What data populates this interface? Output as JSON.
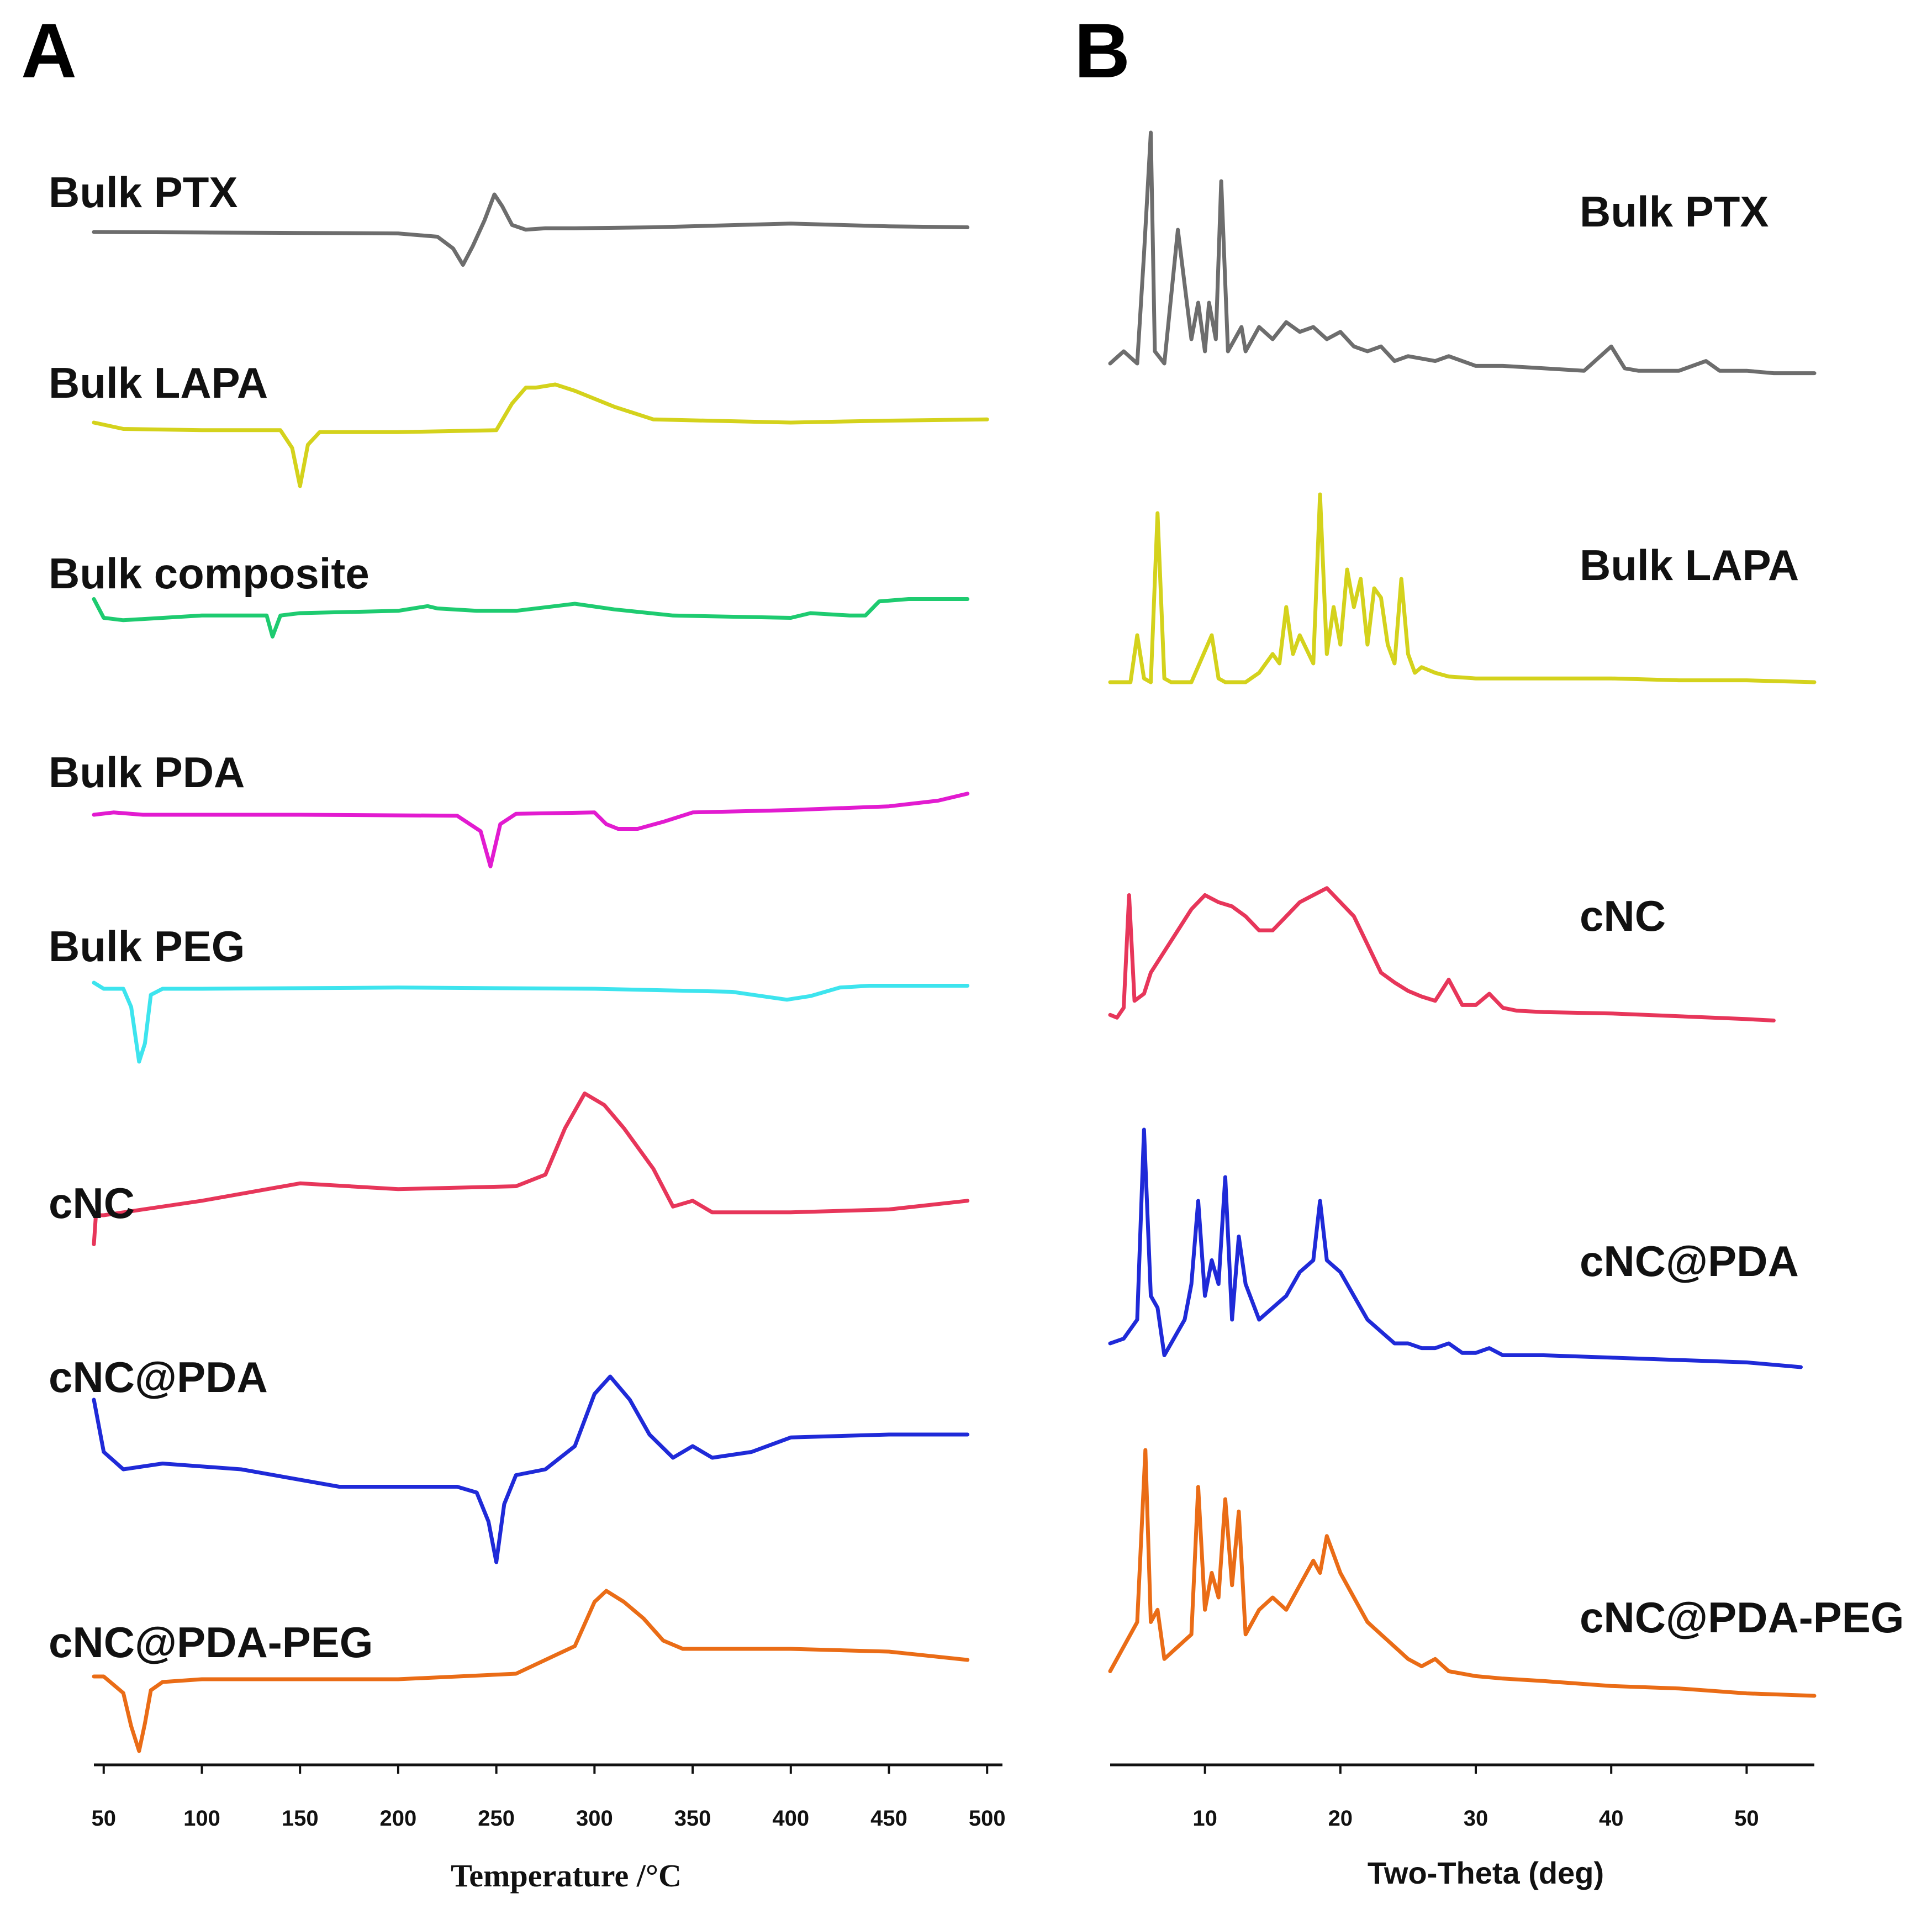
{
  "chart_data": [
    {
      "panel": "A",
      "type": "line",
      "title": "",
      "xlabel": "Temperature /°C",
      "ylabel": "",
      "xlim": [
        45,
        505
      ],
      "xticks": [
        50,
        100,
        150,
        200,
        250,
        300,
        350,
        400,
        450,
        500
      ],
      "xtick_labels": [
        "50",
        "100",
        "150",
        "200",
        "250",
        "300",
        "350",
        "400",
        "450",
        "500"
      ],
      "grid": false,
      "series": [
        {
          "name": "Bulk PTX",
          "color": "#6d6d6d",
          "x": [
            45,
            100,
            150,
            200,
            220,
            228,
            233,
            238,
            244,
            249,
            253,
            258,
            265,
            275,
            290,
            330,
            400,
            450,
            490
          ],
          "y": [
            0,
            -0.01,
            -0.02,
            -0.03,
            -0.1,
            -0.35,
            -0.7,
            -0.3,
            0.25,
            0.8,
            0.55,
            0.15,
            0.05,
            0.08,
            0.08,
            0.1,
            0.18,
            0.12,
            0.1
          ]
        },
        {
          "name": "Bulk LAPA",
          "color": "#d4d21c",
          "x": [
            45,
            60,
            100,
            140,
            146,
            150,
            154,
            160,
            200,
            250,
            258,
            265,
            270,
            280,
            290,
            310,
            330,
            400,
            450,
            500
          ],
          "y": [
            0,
            -0.1,
            -0.12,
            -0.12,
            -0.4,
            -1.0,
            -0.35,
            -0.15,
            -0.15,
            -0.12,
            0.3,
            0.55,
            0.55,
            0.6,
            0.5,
            0.25,
            0.05,
            0.0,
            0.03,
            0.05
          ]
        },
        {
          "name": "Bulk composite",
          "color": "#1ecb70",
          "x": [
            45,
            50,
            60,
            100,
            133,
            136,
            140,
            150,
            200,
            215,
            220,
            240,
            260,
            290,
            310,
            340,
            400,
            410,
            430,
            438,
            445,
            460,
            490
          ],
          "y": [
            0.3,
            -0.1,
            -0.15,
            -0.05,
            -0.05,
            -0.5,
            -0.05,
            0.0,
            0.05,
            0.15,
            0.1,
            0.05,
            0.05,
            0.2,
            0.08,
            -0.05,
            -0.1,
            0.0,
            -0.05,
            -0.05,
            0.25,
            0.3,
            0.3
          ]
        },
        {
          "name": "Bulk PDA",
          "color": "#e21bd0",
          "x": [
            45,
            55,
            70,
            150,
            230,
            242,
            247,
            252,
            260,
            300,
            306,
            312,
            322,
            335,
            350,
            400,
            450,
            475,
            490
          ],
          "y": [
            0,
            0.05,
            0.0,
            0.0,
            -0.02,
            -0.35,
            -1.1,
            -0.2,
            0.02,
            0.05,
            -0.2,
            -0.3,
            -0.3,
            -0.15,
            0.05,
            0.1,
            0.18,
            0.3,
            0.45
          ]
        },
        {
          "name": "Bulk PEG",
          "color": "#3de4ee",
          "x": [
            45,
            50,
            60,
            64,
            68,
            71,
            74,
            80,
            100,
            200,
            300,
            370,
            385,
            398,
            410,
            425,
            440,
            490
          ],
          "y": [
            0.1,
            0.0,
            0.0,
            -0.3,
            -1.2,
            -0.9,
            -0.1,
            0.0,
            0.0,
            0.02,
            0.0,
            -0.05,
            -0.12,
            -0.18,
            -0.12,
            0.02,
            0.05,
            0.05
          ]
        },
        {
          "name": "cNC",
          "color": "#e7365a",
          "x": [
            45,
            46,
            50,
            60,
            100,
            150,
            200,
            260,
            275,
            285,
            295,
            305,
            315,
            330,
            340,
            350,
            360,
            400,
            450,
            490
          ],
          "y": [
            -0.5,
            0.0,
            0.0,
            0.05,
            0.25,
            0.55,
            0.45,
            0.5,
            0.7,
            1.5,
            2.1,
            1.9,
            1.5,
            0.8,
            0.15,
            0.25,
            0.05,
            0.05,
            0.1,
            0.25
          ]
        },
        {
          "name": "cNC@PDA",
          "color": "#1f2ad8",
          "x": [
            45,
            50,
            60,
            80,
            120,
            170,
            200,
            230,
            240,
            246,
            250,
            254,
            260,
            275,
            290,
            300,
            308,
            318,
            328,
            340,
            350,
            360,
            380,
            400,
            450,
            490
          ],
          "y": [
            1.2,
            0.3,
            0.0,
            0.1,
            0.0,
            -0.3,
            -0.3,
            -0.3,
            -0.4,
            -0.9,
            -1.6,
            -0.6,
            -0.1,
            0.0,
            0.4,
            1.3,
            1.6,
            1.2,
            0.6,
            0.2,
            0.4,
            0.2,
            0.3,
            0.55,
            0.6,
            0.6
          ]
        },
        {
          "name": "cNC@PDA-PEG",
          "color": "#ea6c16",
          "x": [
            45,
            50,
            60,
            64,
            68,
            71,
            74,
            80,
            100,
            200,
            260,
            290,
            300,
            306,
            315,
            325,
            335,
            345,
            400,
            450,
            490
          ],
          "y": [
            0.05,
            0.05,
            -0.25,
            -0.85,
            -1.3,
            -0.8,
            -0.2,
            -0.05,
            0.0,
            0.0,
            0.1,
            0.6,
            1.4,
            1.6,
            1.4,
            1.1,
            0.7,
            0.55,
            0.55,
            0.5,
            0.35
          ]
        }
      ]
    },
    {
      "panel": "B",
      "type": "line",
      "title": "",
      "xlabel": "Two-Theta (deg)",
      "ylabel": "",
      "xlim": [
        3,
        55
      ],
      "xticks": [
        10,
        20,
        30,
        40,
        50
      ],
      "xtick_labels": [
        "10",
        "20",
        "30",
        "40",
        "50"
      ],
      "grid": false,
      "series": [
        {
          "name": "Bulk PTX",
          "color": "#6d6d6d",
          "x": [
            3,
            4,
            5,
            5.5,
            6,
            6.3,
            7,
            8,
            9,
            9.5,
            10,
            10.3,
            10.8,
            11.2,
            11.7,
            12.2,
            12.7,
            13,
            14,
            15,
            16,
            17,
            18,
            19,
            20,
            21,
            22,
            23,
            24,
            25,
            27,
            28,
            30,
            32,
            35,
            38,
            40,
            41,
            42,
            45,
            47,
            48,
            50,
            52,
            55
          ],
          "y": [
            0.05,
            0.1,
            0.05,
            0.5,
            1.0,
            0.1,
            0.05,
            0.6,
            0.15,
            0.3,
            0.1,
            0.3,
            0.15,
            0.8,
            0.1,
            0.15,
            0.2,
            0.1,
            0.2,
            0.15,
            0.22,
            0.18,
            0.2,
            0.15,
            0.18,
            0.12,
            0.1,
            0.12,
            0.06,
            0.08,
            0.06,
            0.08,
            0.04,
            0.04,
            0.03,
            0.02,
            0.12,
            0.03,
            0.02,
            0.02,
            0.06,
            0.02,
            0.02,
            0.01,
            0.01
          ]
        },
        {
          "name": "Bulk LAPA",
          "color": "#d4d21c",
          "x": [
            3,
            4.5,
            5,
            5.5,
            6,
            6.5,
            7,
            7.5,
            9,
            10.5,
            11,
            11.5,
            13,
            14,
            15,
            15.5,
            16,
            16.5,
            17,
            18,
            18.5,
            19,
            19.5,
            20,
            20.5,
            21,
            21.5,
            22,
            22.5,
            23,
            23.5,
            24,
            24.5,
            25,
            25.5,
            26,
            27,
            28,
            30,
            35,
            40,
            45,
            50,
            55
          ],
          "y": [
            0.0,
            0.0,
            0.25,
            0.02,
            0.0,
            0.9,
            0.02,
            0.0,
            0.0,
            0.25,
            0.02,
            0.0,
            0.0,
            0.05,
            0.15,
            0.1,
            0.4,
            0.15,
            0.25,
            0.1,
            1.0,
            0.15,
            0.4,
            0.2,
            0.6,
            0.4,
            0.55,
            0.2,
            0.5,
            0.45,
            0.2,
            0.1,
            0.55,
            0.15,
            0.05,
            0.08,
            0.05,
            0.03,
            0.02,
            0.02,
            0.02,
            0.01,
            0.01,
            0.0
          ]
        },
        {
          "name": "cNC",
          "color": "#e7365a",
          "x": [
            3,
            3.5,
            4,
            4.4,
            4.8,
            5.5,
            6,
            7,
            8,
            9,
            10,
            11,
            12,
            13,
            14,
            15,
            16,
            17,
            18,
            19,
            20,
            21,
            22,
            23,
            24,
            25,
            26,
            27,
            28,
            29,
            30,
            31,
            32,
            33,
            35,
            40,
            45,
            50,
            52
          ],
          "y": [
            0.05,
            0.03,
            0.1,
            0.9,
            0.15,
            0.2,
            0.35,
            0.5,
            0.65,
            0.8,
            0.9,
            0.85,
            0.82,
            0.75,
            0.65,
            0.65,
            0.75,
            0.85,
            0.9,
            0.95,
            0.85,
            0.75,
            0.55,
            0.35,
            0.28,
            0.22,
            0.18,
            0.15,
            0.3,
            0.12,
            0.12,
            0.2,
            0.1,
            0.08,
            0.07,
            0.06,
            0.04,
            0.02,
            0.01
          ]
        },
        {
          "name": "cNC@PDA",
          "color": "#1f2ad8",
          "x": [
            3,
            4,
            5,
            5.5,
            6,
            6.5,
            7,
            8,
            8.5,
            9,
            9.5,
            10,
            10.5,
            11,
            11.5,
            12,
            12.5,
            13,
            14,
            15,
            16,
            17,
            18,
            18.5,
            19,
            20,
            21,
            22,
            23,
            24,
            25,
            26,
            27,
            28,
            29,
            30,
            31,
            32,
            35,
            40,
            45,
            50,
            54
          ],
          "y": [
            0.1,
            0.12,
            0.2,
            1.0,
            0.3,
            0.25,
            0.05,
            0.15,
            0.2,
            0.35,
            0.7,
            0.3,
            0.45,
            0.35,
            0.8,
            0.2,
            0.55,
            0.35,
            0.2,
            0.25,
            0.3,
            0.4,
            0.45,
            0.7,
            0.45,
            0.4,
            0.3,
            0.2,
            0.15,
            0.1,
            0.1,
            0.08,
            0.08,
            0.1,
            0.06,
            0.06,
            0.08,
            0.05,
            0.05,
            0.04,
            0.03,
            0.02,
            0.0
          ]
        },
        {
          "name": "cNC@PDA-PEG",
          "color": "#ea6c16",
          "x": [
            3,
            4,
            5,
            5.6,
            6,
            6.5,
            7,
            8,
            9,
            9.5,
            10,
            10.5,
            11,
            11.5,
            12,
            12.5,
            13,
            13.5,
            14,
            15,
            16,
            17,
            18,
            18.5,
            19,
            20,
            21,
            22,
            23,
            24,
            25,
            26,
            27,
            28,
            30,
            32,
            35,
            40,
            45,
            50,
            55
          ],
          "y": [
            0.1,
            0.2,
            0.3,
            1.0,
            0.3,
            0.35,
            0.15,
            0.2,
            0.25,
            0.85,
            0.35,
            0.5,
            0.4,
            0.8,
            0.45,
            0.75,
            0.25,
            0.3,
            0.35,
            0.4,
            0.35,
            0.45,
            0.55,
            0.5,
            0.65,
            0.5,
            0.4,
            0.3,
            0.25,
            0.2,
            0.15,
            0.12,
            0.15,
            0.1,
            0.08,
            0.07,
            0.06,
            0.04,
            0.03,
            0.01,
            0.0
          ]
        }
      ]
    }
  ],
  "panel_a": {
    "letter": "A"
  },
  "panel_b": {
    "letter": "B"
  }
}
